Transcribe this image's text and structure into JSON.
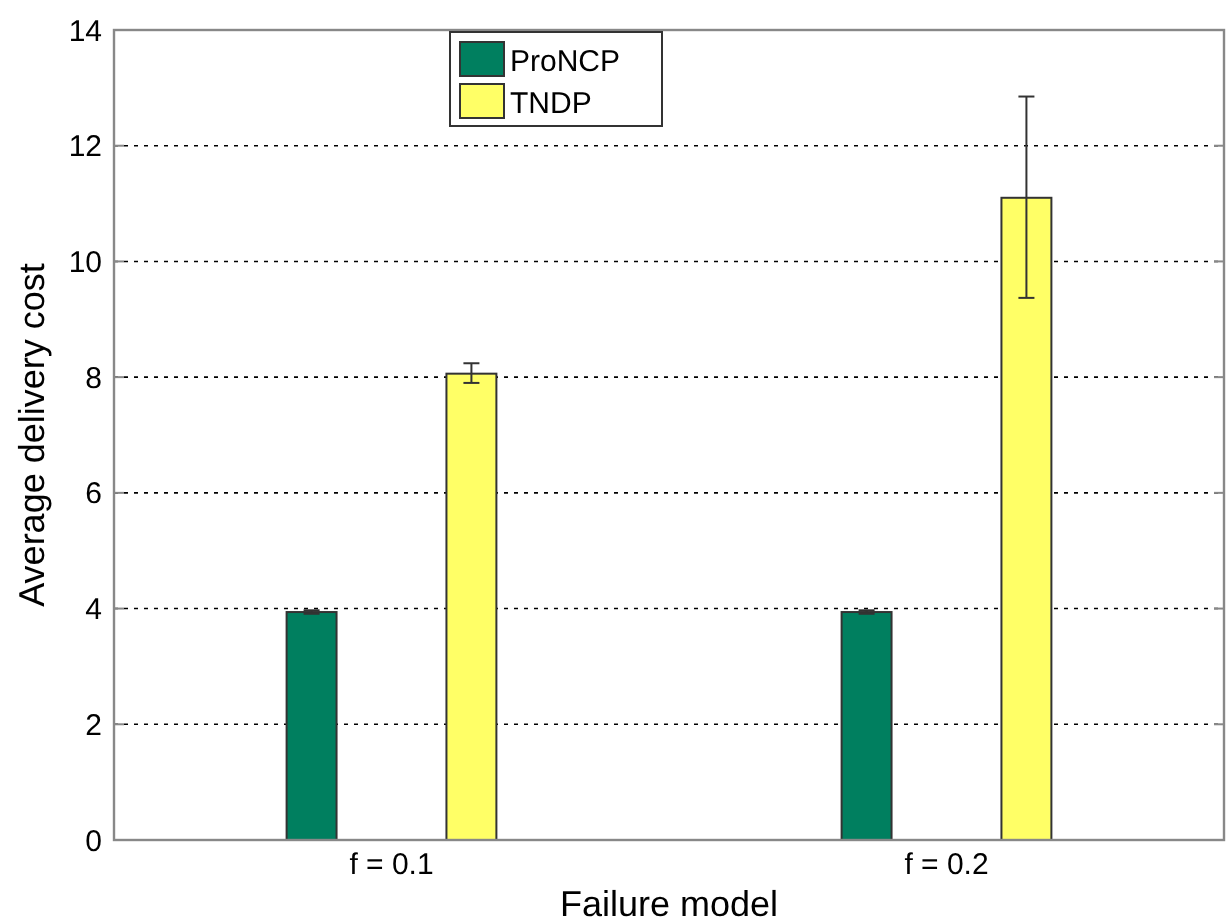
{
  "chart_data": {
    "type": "bar",
    "xlabel": "Failure model",
    "ylabel": "Average delivery cost",
    "categories": [
      "f = 0.1",
      "f = 0.2"
    ],
    "series": [
      {
        "name": "ProNCP",
        "color": "#007f5f",
        "values": [
          3.94,
          3.94
        ],
        "errors": [
          0.03,
          0.03
        ]
      },
      {
        "name": "TNDP",
        "color": "#ffff66",
        "values": [
          8.06,
          11.1
        ],
        "errors": [
          [
            7.9,
            8.24
          ],
          [
            9.37,
            12.85
          ]
        ]
      }
    ],
    "ylim": [
      0,
      14
    ],
    "yticks": [
      0,
      2,
      4,
      6,
      8,
      10,
      12,
      14
    ],
    "grid": "y",
    "legend": "top"
  }
}
